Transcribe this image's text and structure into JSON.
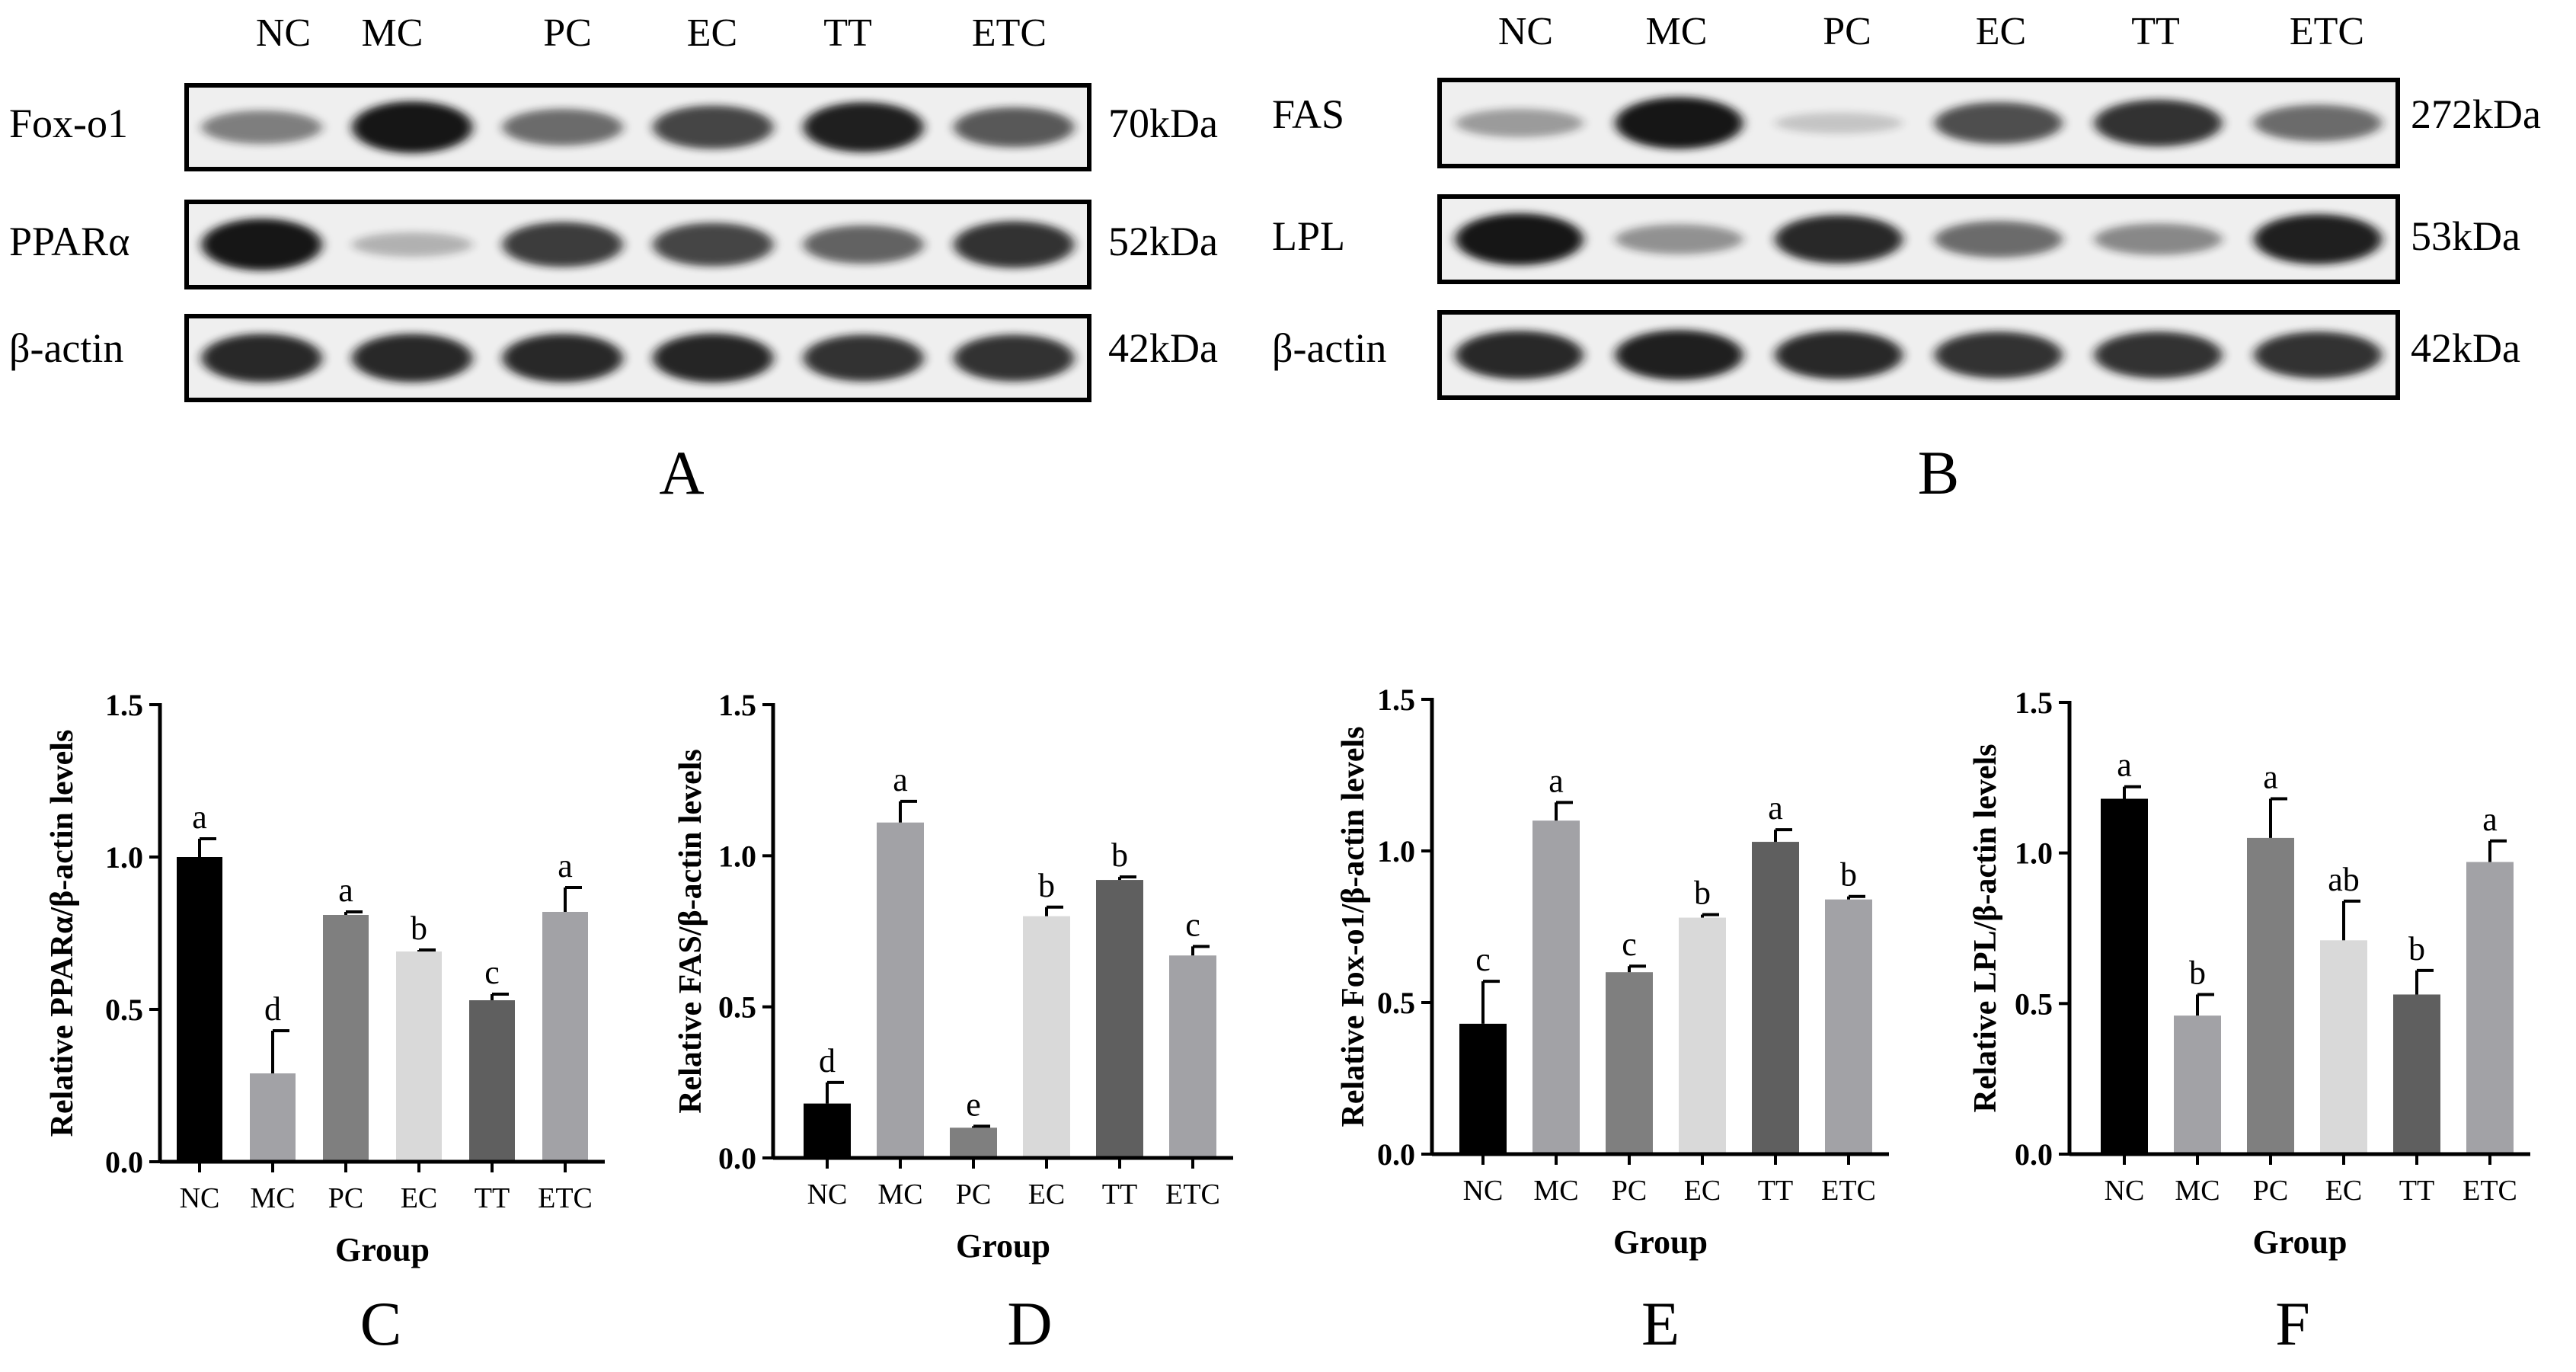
{
  "blots": [
    {
      "panel": "A",
      "groups": [
        "NC",
        "MC",
        "PC",
        "EC",
        "TT",
        "ETC"
      ],
      "rows": [
        {
          "protein": "Fox-o1",
          "size": "70kDa",
          "intensity": [
            0.45,
            1.0,
            0.55,
            0.75,
            0.95,
            0.65
          ]
        },
        {
          "protein": "PPARα",
          "size": "52kDa",
          "intensity": [
            1.0,
            0.18,
            0.8,
            0.75,
            0.6,
            0.85
          ]
        },
        {
          "protein": "β-actin",
          "size": "42kDa",
          "intensity": [
            0.9,
            0.9,
            0.9,
            0.92,
            0.85,
            0.85
          ]
        }
      ]
    },
    {
      "panel": "B",
      "groups": [
        "NC",
        "MC",
        "PC",
        "EC",
        "TT",
        "ETC"
      ],
      "rows": [
        {
          "protein": "FAS",
          "size": "272kDa",
          "intensity": [
            0.3,
            1.0,
            0.08,
            0.7,
            0.85,
            0.55
          ]
        },
        {
          "protein": "LPL",
          "size": "53kDa",
          "intensity": [
            1.0,
            0.35,
            0.9,
            0.55,
            0.4,
            0.95
          ]
        },
        {
          "protein": "β-actin",
          "size": "42kDa",
          "intensity": [
            0.9,
            0.95,
            0.9,
            0.85,
            0.85,
            0.85
          ]
        }
      ]
    }
  ],
  "chart_data": [
    {
      "panel": "C",
      "type": "bar",
      "categories": [
        "NC",
        "MC",
        "PC",
        "EC",
        "TT",
        "ETC"
      ],
      "values": [
        1.0,
        0.29,
        0.81,
        0.69,
        0.53,
        0.82
      ],
      "errors": [
        0.06,
        0.14,
        0.01,
        0.005,
        0.02,
        0.08
      ],
      "letters": [
        "a",
        "d",
        "a",
        "b",
        "c",
        "a"
      ],
      "xlabel": "Group",
      "ylabel": "Relative PPARα/β-actin levels",
      "ylim": [
        0,
        1.5
      ],
      "yticks": [
        "0.0",
        "0.5",
        "1.0",
        "1.5"
      ]
    },
    {
      "panel": "D",
      "type": "bar",
      "categories": [
        "NC",
        "MC",
        "PC",
        "EC",
        "TT",
        "ETC"
      ],
      "values": [
        0.18,
        1.11,
        0.1,
        0.8,
        0.92,
        0.67
      ],
      "errors": [
        0.07,
        0.07,
        0.005,
        0.03,
        0.01,
        0.03
      ],
      "letters": [
        "d",
        "a",
        "e",
        "b",
        "b",
        "c"
      ],
      "xlabel": "Group",
      "ylabel": "Relative FAS/β-actin levels",
      "ylim": [
        0,
        1.5
      ],
      "yticks": [
        "0.0",
        "0.5",
        "1.0",
        "1.5"
      ]
    },
    {
      "panel": "E",
      "type": "bar",
      "categories": [
        "NC",
        "MC",
        "PC",
        "EC",
        "TT",
        "ETC"
      ],
      "values": [
        0.43,
        1.1,
        0.6,
        0.78,
        1.03,
        0.84
      ],
      "errors": [
        0.14,
        0.06,
        0.02,
        0.01,
        0.04,
        0.01
      ],
      "letters": [
        "c",
        "a",
        "c",
        "b",
        "a",
        "b"
      ],
      "xlabel": "Group",
      "ylabel": "Relative Fox-o1/β-actin levels",
      "ylim": [
        0,
        1.5
      ],
      "yticks": [
        "0.0",
        "0.5",
        "1.0",
        "1.5"
      ]
    },
    {
      "panel": "F",
      "type": "bar",
      "categories": [
        "NC",
        "MC",
        "PC",
        "EC",
        "TT",
        "ETC"
      ],
      "values": [
        1.18,
        0.46,
        1.05,
        0.71,
        0.53,
        0.97
      ],
      "errors": [
        0.04,
        0.07,
        0.13,
        0.13,
        0.08,
        0.07
      ],
      "letters": [
        "a",
        "b",
        "a",
        "ab",
        "b",
        "a"
      ],
      "xlabel": "Group",
      "ylabel": "Relative LPL/β-actin levels",
      "ylim": [
        0,
        1.5
      ],
      "yticks": [
        "0.0",
        "0.5",
        "1.0",
        "1.5"
      ]
    }
  ],
  "colors": {
    "bars": [
      "#000000",
      "#a2a2a6",
      "#7f7f7f",
      "#d9d9d9",
      "#5f5f5f",
      "#a2a2a6"
    ],
    "band": "#141414",
    "axis": "#000000"
  }
}
